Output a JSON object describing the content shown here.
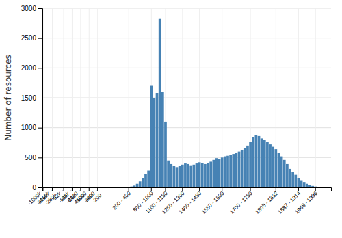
{
  "chart_data": {
    "type": "bar",
    "categories": [
      "-1000k -\n-820k",
      null,
      null,
      "-460k -\n-280k",
      null,
      null,
      null,
      "-82k -\n-64k",
      null,
      null,
      "-28k -\n-10k",
      null,
      null,
      "-6400 -\n-4600",
      null,
      null,
      "-1000 -\n-800",
      null,
      null,
      "-400 -\n-200",
      null,
      null,
      null,
      null,
      null,
      null,
      null,
      null,
      null,
      null,
      "200 - 400",
      null,
      null,
      null,
      null,
      null,
      null,
      null,
      "800 - 1000",
      null,
      null,
      null,
      null,
      "1100 - 1150",
      null,
      null,
      null,
      null,
      null,
      "1250 - 1300",
      null,
      null,
      null,
      null,
      null,
      "1400 - 1450",
      null,
      null,
      null,
      null,
      null,
      null,
      null,
      "1550 - 1600",
      null,
      null,
      null,
      null,
      null,
      null,
      null,
      null,
      null,
      "1700 - 1750",
      null,
      null,
      null,
      null,
      null,
      null,
      null,
      null,
      "1805 - 1832",
      null,
      null,
      null,
      null,
      null,
      null,
      null,
      "1887 - 1914",
      null,
      null,
      null,
      null,
      null,
      "1968 - 1996",
      null,
      null,
      null,
      null,
      null
    ],
    "values": [
      0,
      0,
      0,
      0,
      0,
      0,
      0,
      0,
      0,
      0,
      0,
      0,
      0,
      0,
      0,
      0,
      0,
      0,
      0,
      0,
      0,
      0,
      0,
      0,
      0,
      0,
      1,
      2,
      3,
      5,
      8,
      15,
      30,
      60,
      100,
      160,
      220,
      280,
      1700,
      1500,
      1580,
      2820,
      1600,
      1100,
      450,
      390,
      360,
      340,
      360,
      380,
      400,
      390,
      370,
      380,
      400,
      420,
      410,
      390,
      410,
      430,
      460,
      490,
      480,
      500,
      520,
      530,
      540,
      560,
      580,
      600,
      630,
      660,
      700,
      760,
      840,
      880,
      860,
      820,
      790,
      760,
      720,
      680,
      640,
      580,
      520,
      460,
      390,
      310,
      260,
      210,
      160,
      120,
      90,
      60,
      40,
      25,
      15,
      8,
      4,
      2,
      1,
      0
    ],
    "ylabel": "Number of resources",
    "ylim": [
      0,
      3000
    ],
    "yticks": [
      0,
      500,
      1000,
      1500,
      2000,
      2500,
      3000
    ],
    "grid": true
  }
}
